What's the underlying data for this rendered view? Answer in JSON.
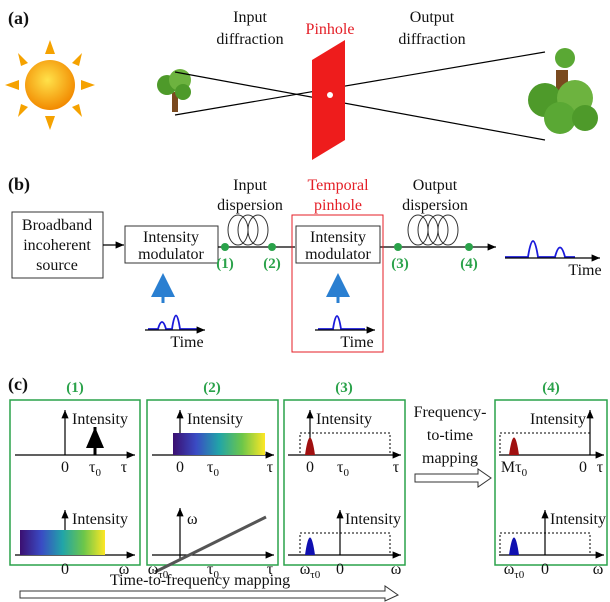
{
  "panel_a": {
    "label": "(a)",
    "input_diffraction": [
      "Input",
      "diffraction"
    ],
    "pinhole": "Pinhole",
    "output_diffraction": [
      "Output",
      "diffraction"
    ]
  },
  "panel_b": {
    "label": "(b)",
    "source": [
      "Broadband",
      "incoherent",
      "source"
    ],
    "modulator_1": [
      "Intensity",
      "modulator"
    ],
    "input_dispersion": [
      "Input",
      "dispersion"
    ],
    "temporal_pinhole": [
      "Temporal",
      "pinhole"
    ],
    "modulator_2": [
      "Intensity",
      "modulator"
    ],
    "output_dispersion": [
      "Output",
      "dispersion"
    ],
    "points": [
      "(1)",
      "(2)",
      "(3)",
      "(4)"
    ],
    "time_labels": [
      "Time",
      "Time",
      "Time"
    ]
  },
  "panel_c": {
    "label": "(c)",
    "columns": [
      {
        "label": "(1)",
        "top": {
          "axis_label": "Intensity",
          "ticks": [
            "0",
            {
              "base": "τ",
              "sub": "0"
            },
            "τ"
          ]
        },
        "bottom": {
          "axis_label": "Intensity",
          "ticks": [
            "0",
            "ω"
          ]
        }
      },
      {
        "label": "(2)",
        "top": {
          "axis_label": "Intensity",
          "ticks": [
            "0",
            {
              "base": "τ",
              "sub": "0"
            },
            "τ"
          ]
        },
        "bottom": {
          "axis_label": "ω",
          "ticks": [
            {
              "base": "ω",
              "sub": "τ0"
            },
            {
              "base": "τ",
              "sub": "0"
            },
            "τ"
          ]
        }
      },
      {
        "label": "(3)",
        "top": {
          "axis_label": "Intensity",
          "ticks": [
            "0",
            {
              "base": "τ",
              "sub": "0"
            },
            "τ"
          ]
        },
        "bottom": {
          "axis_label": "Intensity",
          "ticks": [
            {
              "base": "ω",
              "sub": "τ0"
            },
            "0",
            "ω"
          ]
        }
      },
      {
        "label": "(4)",
        "top": {
          "axis_label": "Intensity",
          "ticks": [
            {
              "base": "Mτ",
              "sub": "0"
            },
            "0",
            "τ"
          ]
        },
        "bottom": {
          "axis_label": "Intensity",
          "ticks": [
            {
              "base": "ω",
              "sub": "τ0"
            },
            "0",
            "ω"
          ]
        }
      }
    ],
    "frequency_to_time": [
      "Frequency-",
      "to-time",
      "mapping"
    ],
    "time_to_frequency": "Time-to-frequency mapping"
  }
}
